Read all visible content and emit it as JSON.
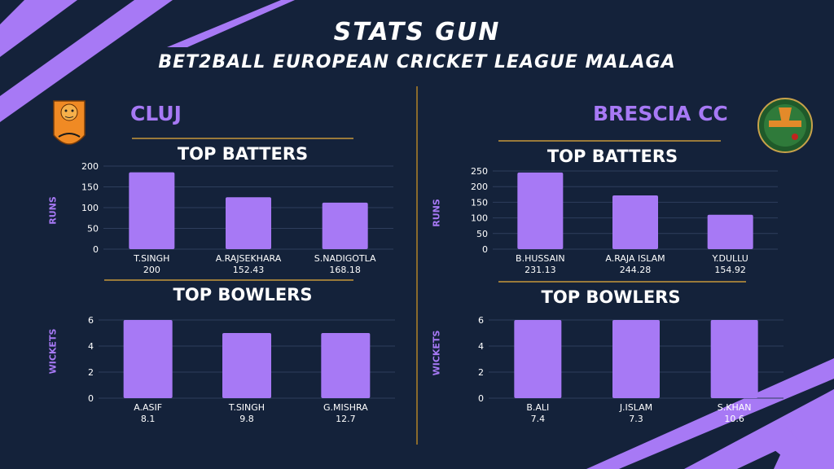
{
  "header": {
    "title": "STATS GUN",
    "subtitle": "BET2BALL EUROPEAN CRICKET LEAGUE MALAGA"
  },
  "colors": {
    "background": "#14223a",
    "accent": "#a779f5",
    "bar": "#a779f5",
    "divider": "#8a6a2c"
  },
  "teams": {
    "left": {
      "name": "CLUJ",
      "logo_icon": "tiger-badge-icon",
      "logo_text": "Cluj Cricket Club"
    },
    "right": {
      "name": "BRESCIA CC",
      "logo_icon": "cricket-player-badge-icon",
      "logo_text": "BRESCIA CRICKET CLUB"
    }
  },
  "sections": {
    "batters": "TOP BATTERS",
    "bowlers": "TOP BOWLERS"
  },
  "chart_data": [
    {
      "id": "cluj-batters",
      "type": "bar",
      "title": "TOP BATTERS",
      "ylabel": "RUNS",
      "ylim": [
        0,
        200
      ],
      "yticks": [
        0,
        50,
        100,
        150,
        200
      ],
      "categories": [
        "T.SINGH",
        "A.RAJSEKHARA",
        "S.NADIGOTLA"
      ],
      "values": [
        200,
        152.43,
        168.18
      ],
      "bar_values": [
        185,
        125,
        112
      ],
      "grid": true
    },
    {
      "id": "cluj-bowlers",
      "type": "bar",
      "title": "TOP BOWLERS",
      "ylabel": "WICKETS",
      "ylim": [
        0,
        6
      ],
      "yticks": [
        0,
        2,
        4,
        6
      ],
      "categories": [
        "A.ASIF",
        "T.SINGH",
        "G.MISHRA"
      ],
      "values": [
        8.1,
        9.8,
        12.7
      ],
      "bar_values": [
        6,
        5,
        5
      ],
      "grid": true
    },
    {
      "id": "brescia-batters",
      "type": "bar",
      "title": "TOP BATTERS",
      "ylabel": "RUNS",
      "ylim": [
        0,
        250
      ],
      "yticks": [
        0,
        50,
        100,
        150,
        200,
        250
      ],
      "categories": [
        "B.HUSSAIN",
        "A.RAJA ISLAM",
        "Y.DULLU"
      ],
      "values": [
        231.13,
        244.28,
        154.92
      ],
      "bar_values": [
        245,
        172,
        110
      ],
      "grid": true
    },
    {
      "id": "brescia-bowlers",
      "type": "bar",
      "title": "TOP BOWLERS",
      "ylabel": "WICKETS",
      "ylim": [
        0,
        6
      ],
      "yticks": [
        0,
        2,
        4,
        6
      ],
      "categories": [
        "B.ALI",
        "J.ISLAM",
        "S.KHAN"
      ],
      "values": [
        7.4,
        7.3,
        10.6
      ],
      "bar_values": [
        6,
        6,
        6
      ],
      "grid": true
    }
  ]
}
